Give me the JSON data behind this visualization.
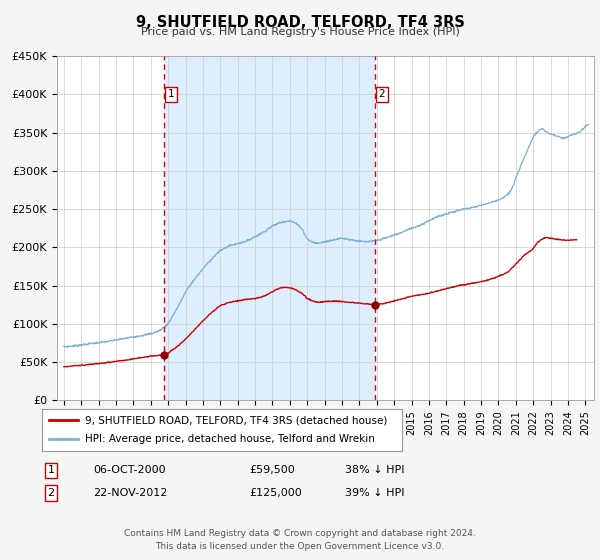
{
  "title": "9, SHUTFIELD ROAD, TELFORD, TF4 3RS",
  "subtitle": "Price paid vs. HM Land Registry's House Price Index (HPI)",
  "bg_color": "#f5f5f5",
  "plot_bg_color": "#ffffff",
  "highlight_bg_color": "#ddeeff",
  "red_line_color": "#cc0000",
  "blue_line_color": "#7ab0d4",
  "marker_color": "#880000",
  "dashed_line_color": "#dd0000",
  "ylim": [
    0,
    450000
  ],
  "yticks": [
    0,
    50000,
    100000,
    150000,
    200000,
    250000,
    300000,
    350000,
    400000,
    450000
  ],
  "ytick_labels": [
    "£0",
    "£50K",
    "£100K",
    "£150K",
    "£200K",
    "£250K",
    "£300K",
    "£350K",
    "£400K",
    "£450K"
  ],
  "xlim_start": 1994.6,
  "xlim_end": 2025.5,
  "event1_x": 2000.77,
  "event1_price": 59500,
  "event2_x": 2012.9,
  "event2_price": 125000,
  "legend_line1": "9, SHUTFIELD ROAD, TELFORD, TF4 3RS (detached house)",
  "legend_line2": "HPI: Average price, detached house, Telford and Wrekin",
  "footer1": "Contains HM Land Registry data © Crown copyright and database right 2024.",
  "footer2": "This data is licensed under the Open Government Licence v3.0."
}
